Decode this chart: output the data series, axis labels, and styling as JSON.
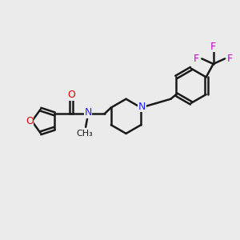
{
  "background_color": "#ebebeb",
  "bond_color": "#1a1a1a",
  "nitrogen_color": "#2020ff",
  "oxygen_color": "#dd0000",
  "fluorine_color": "#cc00cc",
  "line_width": 1.8,
  "fig_size": [
    3.0,
    3.0
  ],
  "dpi": 100,
  "xlim": [
    0,
    10
  ],
  "ylim": [
    0,
    10
  ]
}
